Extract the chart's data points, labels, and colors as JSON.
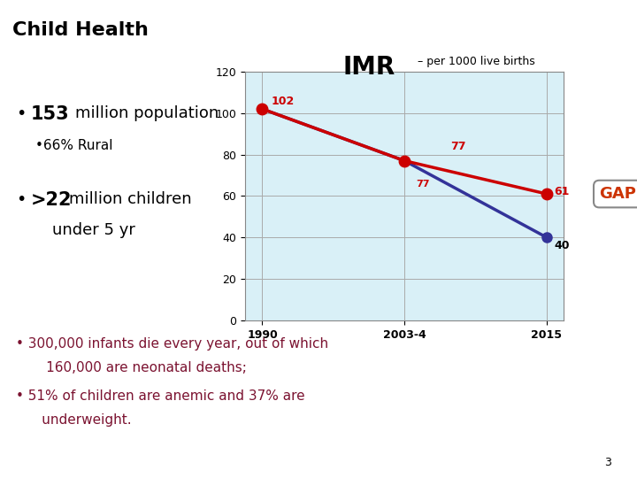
{
  "title": "Child Health",
  "title_color": "#000000",
  "header_line_color": "#7B3B6E",
  "imr_title_large": "IMR",
  "imr_subtitle": " – per 1000 live births",
  "background_color": "#ffffff",
  "plot_bg_color": "#d9f0f7",
  "x_labels": [
    "1990",
    "2003-4",
    "2015"
  ],
  "x_positions": [
    0,
    1,
    2
  ],
  "ylim": [
    0,
    120
  ],
  "yticks": [
    0,
    20,
    40,
    60,
    80,
    100,
    120
  ],
  "line1_color": "#cc0000",
  "line1_values": [
    102,
    77,
    61
  ],
  "line2_color": "#333399",
  "line2_values": [
    102,
    77,
    40
  ],
  "data_labels_line1": [
    "102",
    "77",
    "61"
  ],
  "data_labels_line2": [
    "",
    "77",
    "40"
  ],
  "gap_label": "GAP",
  "gap_color": "#cc3300",
  "bottom_text_color": "#7B1230",
  "page_number": "3",
  "bottom_bullet1_a": "• 300,000 infants die every year, out of which",
  "bottom_bullet1_b": "       160,000 are neonatal deaths;",
  "bottom_bullet2_a": "• 51% of children are anemic and 37% are",
  "bottom_bullet2_b": "      underweight."
}
